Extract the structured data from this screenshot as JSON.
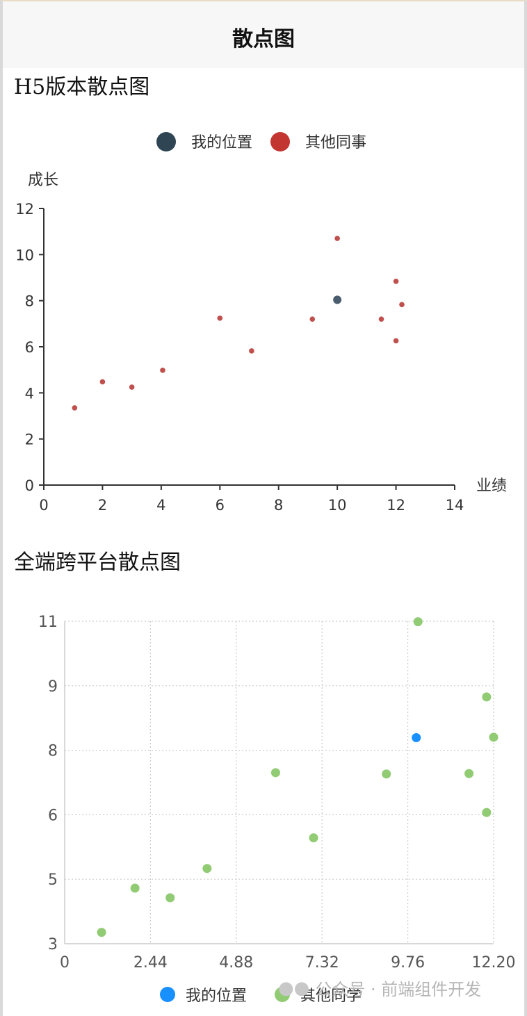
{
  "nav": {
    "title": "散点图"
  },
  "sections": [
    {
      "title": "H5版本散点图"
    },
    {
      "title": "全端跨平台散点图"
    }
  ],
  "watermark": {
    "text": "公众号 · 前端组件开发",
    "icon": "wechat-icon"
  },
  "chart_data": [
    {
      "type": "scatter",
      "title": "",
      "xlabel": "业绩",
      "ylabel": "成长",
      "xlim": [
        0,
        14
      ],
      "ylim": [
        0,
        12
      ],
      "xticks": [
        "0",
        "2",
        "4",
        "6",
        "8",
        "10",
        "12",
        "14"
      ],
      "yticks": [
        "0",
        "2",
        "4",
        "6",
        "8",
        "10",
        "12"
      ],
      "grid": false,
      "legend_position": "top-center",
      "series": [
        {
          "name": "我的位置",
          "color": "#2f4554",
          "points": [
            [
              10,
              8.04
            ]
          ]
        },
        {
          "name": "其他同事",
          "color": "#c23531",
          "points": [
            [
              1.05,
              3.35
            ],
            [
              2.0,
              4.48
            ],
            [
              3.0,
              4.25
            ],
            [
              4.05,
              4.98
            ],
            [
              6.0,
              7.24
            ],
            [
              7.08,
              5.82
            ],
            [
              9.15,
              7.2
            ],
            [
              10.0,
              10.7
            ],
            [
              11.5,
              7.2
            ],
            [
              12.0,
              8.84
            ],
            [
              12.2,
              7.83
            ],
            [
              12.0,
              6.26
            ]
          ]
        }
      ]
    },
    {
      "type": "scatter",
      "title": "",
      "xlabel": "",
      "ylabel": "",
      "xlim": [
        0,
        12.2
      ],
      "ylim": [
        3.33,
        10.7
      ],
      "xticks": [
        "0",
        "2.44",
        "4.88",
        "7.32",
        "9.76",
        "12.20"
      ],
      "yticks": [
        "3",
        "5",
        "6",
        "8",
        "9",
        "11"
      ],
      "grid": true,
      "legend_position": "bottom-center",
      "series": [
        {
          "name": "我的位置",
          "color": "#1890ff",
          "points": [
            [
              10.0,
              8.04
            ]
          ]
        },
        {
          "name": "其他同学",
          "color": "#91cb74",
          "points": [
            [
              1.05,
              3.59
            ],
            [
              2.0,
              4.6
            ],
            [
              3.0,
              4.38
            ],
            [
              4.05,
              5.05
            ],
            [
              6.0,
              7.24
            ],
            [
              7.08,
              5.75
            ],
            [
              9.15,
              7.21
            ],
            [
              10.05,
              10.69
            ],
            [
              11.5,
              7.22
            ],
            [
              12.0,
              8.97
            ],
            [
              12.2,
              8.05
            ],
            [
              12.0,
              6.33
            ]
          ]
        }
      ]
    }
  ]
}
